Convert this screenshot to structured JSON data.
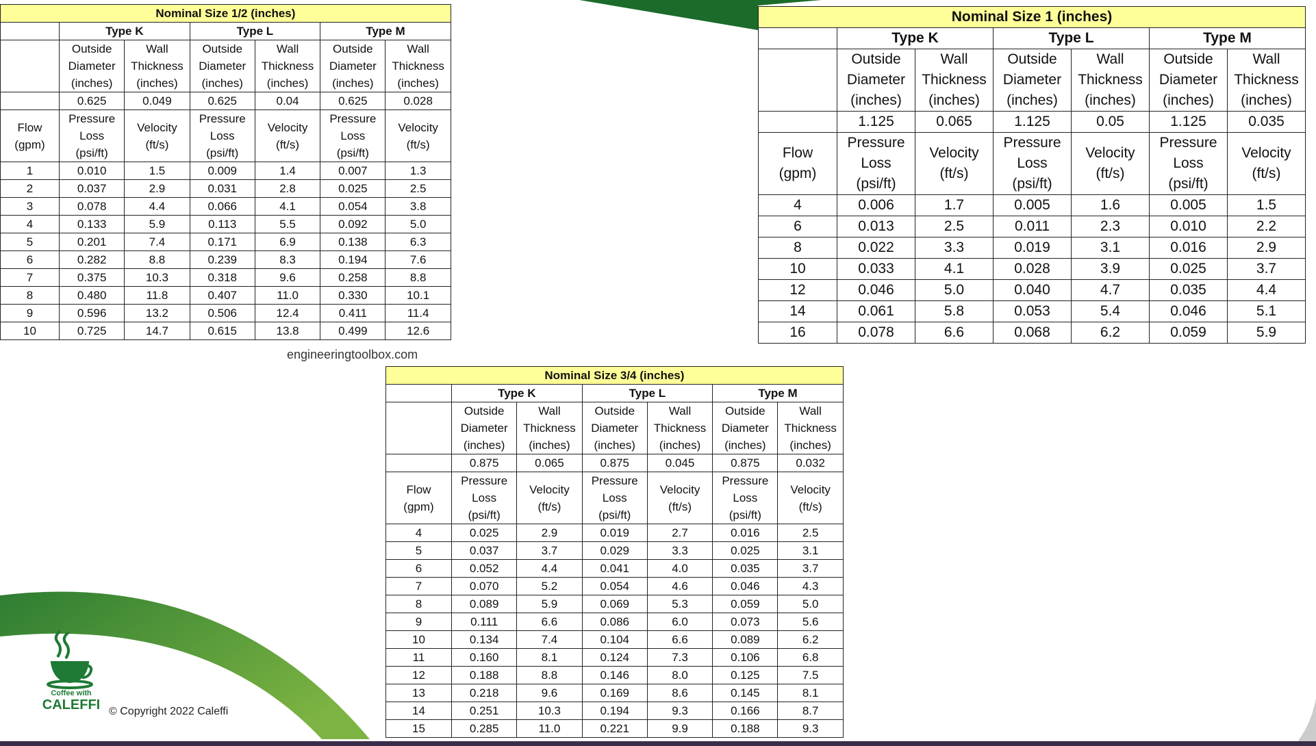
{
  "site": "engineeringtoolbox.com",
  "copyright": "© Copyright 2022 Caleffi",
  "logo": {
    "line1": "Coffee with",
    "line2": "CALEFFI"
  },
  "tables": [
    {
      "title": "Nominal Size 1/2 (inches)",
      "types": [
        "Type K",
        "Type L",
        "Type M"
      ],
      "dims": [
        "Outside Diameter (inches)",
        "Wall Thickness (inches)",
        "Outside Diameter (inches)",
        "Wall Thickness (inches)",
        "Outside Diameter (inches)",
        "Wall Thickness (inches)"
      ],
      "sizes": [
        "0.625",
        "0.049",
        "0.625",
        "0.04",
        "0.625",
        "0.028"
      ],
      "flow_header": "Flow (gpm)",
      "columns": [
        "Pressure Loss (psi/ft)",
        "Velocity (ft/s)",
        "Pressure Loss (psi/ft)",
        "Velocity (ft/s)",
        "Pressure Loss (psi/ft)",
        "Velocity (ft/s)"
      ],
      "rows": [
        [
          "1",
          "0.010",
          "1.5",
          "0.009",
          "1.4",
          "0.007",
          "1.3"
        ],
        [
          "2",
          "0.037",
          "2.9",
          "0.031",
          "2.8",
          "0.025",
          "2.5"
        ],
        [
          "3",
          "0.078",
          "4.4",
          "0.066",
          "4.1",
          "0.054",
          "3.8"
        ],
        [
          "4",
          "0.133",
          "5.9",
          "0.113",
          "5.5",
          "0.092",
          "5.0"
        ],
        [
          "5",
          "0.201",
          "7.4",
          "0.171",
          "6.9",
          "0.138",
          "6.3"
        ],
        [
          "6",
          "0.282",
          "8.8",
          "0.239",
          "8.3",
          "0.194",
          "7.6"
        ],
        [
          "7",
          "0.375",
          "10.3",
          "0.318",
          "9.6",
          "0.258",
          "8.8"
        ],
        [
          "8",
          "0.480",
          "11.8",
          "0.407",
          "11.0",
          "0.330",
          "10.1"
        ],
        [
          "9",
          "0.596",
          "13.2",
          "0.506",
          "12.4",
          "0.411",
          "11.4"
        ],
        [
          "10",
          "0.725",
          "14.7",
          "0.615",
          "13.8",
          "0.499",
          "12.6"
        ]
      ]
    },
    {
      "title": "Nominal Size 1 (inches)",
      "types": [
        "Type K",
        "Type L",
        "Type M"
      ],
      "dims": [
        "Outside Diameter (inches)",
        "Wall Thickness (inches)",
        "Outside Diameter (inches)",
        "Wall Thickness (inches)",
        "Outside Diameter (inches)",
        "Wall Thickness (inches)"
      ],
      "sizes": [
        "1.125",
        "0.065",
        "1.125",
        "0.05",
        "1.125",
        "0.035"
      ],
      "flow_header": "Flow (gpm)",
      "columns": [
        "Pressure Loss (psi/ft)",
        "Velocity (ft/s)",
        "Pressure Loss (psi/ft)",
        "Velocity (ft/s)",
        "Pressure Loss (psi/ft)",
        "Velocity (ft/s)"
      ],
      "rows": [
        [
          "4",
          "0.006",
          "1.7",
          "0.005",
          "1.6",
          "0.005",
          "1.5"
        ],
        [
          "6",
          "0.013",
          "2.5",
          "0.011",
          "2.3",
          "0.010",
          "2.2"
        ],
        [
          "8",
          "0.022",
          "3.3",
          "0.019",
          "3.1",
          "0.016",
          "2.9"
        ],
        [
          "10",
          "0.033",
          "4.1",
          "0.028",
          "3.9",
          "0.025",
          "3.7"
        ],
        [
          "12",
          "0.046",
          "5.0",
          "0.040",
          "4.7",
          "0.035",
          "4.4"
        ],
        [
          "14",
          "0.061",
          "5.8",
          "0.053",
          "5.4",
          "0.046",
          "5.1"
        ],
        [
          "16",
          "0.078",
          "6.6",
          "0.068",
          "6.2",
          "0.059",
          "5.9"
        ]
      ]
    },
    {
      "title": "Nominal Size 3/4 (inches)",
      "types": [
        "Type K",
        "Type L",
        "Type M"
      ],
      "dims": [
        "Outside Diameter (inches)",
        "Wall Thickness (inches)",
        "Outside Diameter (inches)",
        "Wall Thickness (inches)",
        "Outside Diameter (inches)",
        "Wall Thickness (inches)"
      ],
      "sizes": [
        "0.875",
        "0.065",
        "0.875",
        "0.045",
        "0.875",
        "0.032"
      ],
      "flow_header": "Flow (gpm)",
      "columns": [
        "Pressure Loss (psi/ft)",
        "Velocity (ft/s)",
        "Pressure Loss (psi/ft)",
        "Velocity (ft/s)",
        "Pressure Loss (psi/ft)",
        "Velocity (ft/s)"
      ],
      "rows": [
        [
          "4",
          "0.025",
          "2.9",
          "0.019",
          "2.7",
          "0.016",
          "2.5"
        ],
        [
          "5",
          "0.037",
          "3.7",
          "0.029",
          "3.3",
          "0.025",
          "3.1"
        ],
        [
          "6",
          "0.052",
          "4.4",
          "0.041",
          "4.0",
          "0.035",
          "3.7"
        ],
        [
          "7",
          "0.070",
          "5.2",
          "0.054",
          "4.6",
          "0.046",
          "4.3"
        ],
        [
          "8",
          "0.089",
          "5.9",
          "0.069",
          "5.3",
          "0.059",
          "5.0"
        ],
        [
          "9",
          "0.111",
          "6.6",
          "0.086",
          "6.0",
          "0.073",
          "5.6"
        ],
        [
          "10",
          "0.134",
          "7.4",
          "0.104",
          "6.6",
          "0.089",
          "6.2"
        ],
        [
          "11",
          "0.160",
          "8.1",
          "0.124",
          "7.3",
          "0.106",
          "6.8"
        ],
        [
          "12",
          "0.188",
          "8.8",
          "0.146",
          "8.0",
          "0.125",
          "7.5"
        ],
        [
          "13",
          "0.218",
          "9.6",
          "0.169",
          "8.6",
          "0.145",
          "8.1"
        ],
        [
          "14",
          "0.251",
          "10.3",
          "0.194",
          "9.3",
          "0.166",
          "8.7"
        ],
        [
          "15",
          "0.285",
          "11.0",
          "0.221",
          "9.9",
          "0.188",
          "9.3"
        ]
      ]
    }
  ]
}
